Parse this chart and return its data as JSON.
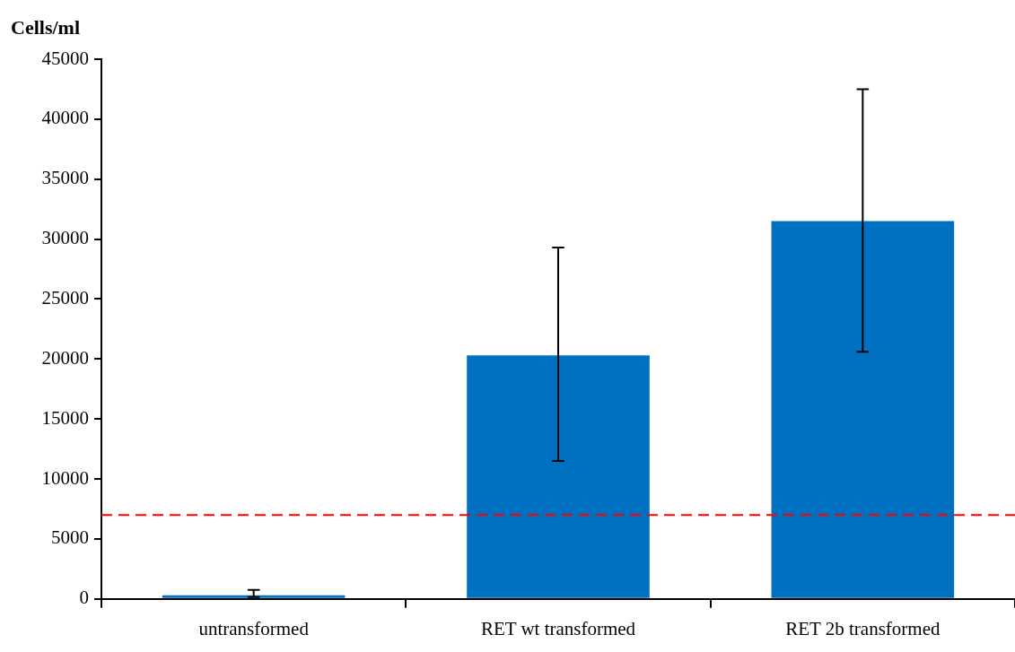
{
  "chart_data": {
    "type": "bar",
    "ylabel": "Cells/ml",
    "categories": [
      "untransformed",
      "RET wt transformed",
      "RET 2b transformed"
    ],
    "values": [
      300,
      20300,
      31500
    ],
    "color": "#0070c0",
    "errors": [
      [
        150,
        750
      ],
      [
        11500,
        29300
      ],
      [
        20600,
        42500
      ]
    ],
    "ylim": [
      0,
      45000
    ],
    "yticks": [
      0,
      5000,
      10000,
      15000,
      20000,
      25000,
      30000,
      35000,
      40000,
      45000
    ],
    "ref_lines": [
      {
        "axis": "y",
        "value": 7000,
        "color": "#ff0000",
        "line_style": "dashed"
      }
    ]
  }
}
